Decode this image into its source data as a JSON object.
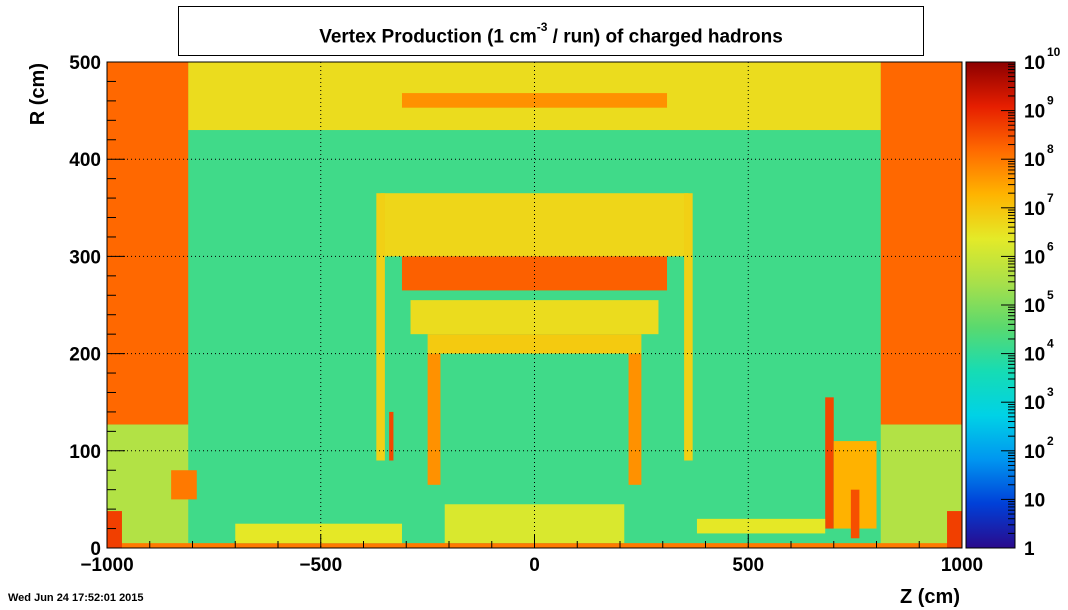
{
  "title": {
    "prefix": "Vertex Production (1 cm",
    "superscript": "-3",
    "suffix": " / run) of   charged hadrons"
  },
  "timestamp": "Wed Jun 24 17:52:01 2015",
  "chart_data": {
    "type": "heatmap",
    "xlabel": "Z (cm)",
    "ylabel": "R (cm)",
    "xlim": [
      -1000,
      1000
    ],
    "ylim": [
      0,
      500
    ],
    "x_ticks": [
      -1000,
      -500,
      0,
      500,
      1000
    ],
    "x_tick_labels": [
      "−1000",
      "−500",
      "0",
      "500",
      "1000"
    ],
    "y_ticks": [
      0,
      100,
      200,
      300,
      400,
      500
    ],
    "y_tick_labels": [
      "0",
      "100",
      "200",
      "300",
      "400",
      "500"
    ],
    "grid": true,
    "z_scale": "log",
    "z_range": [
      1,
      10000000000
    ],
    "colorbar_ticks": [
      {
        "value": 1,
        "base": "1",
        "exp": ""
      },
      {
        "value": 10,
        "base": "10",
        "exp": ""
      },
      {
        "value": 100,
        "base": "10",
        "exp": "2"
      },
      {
        "value": 1000,
        "base": "10",
        "exp": "3"
      },
      {
        "value": 10000,
        "base": "10",
        "exp": "4"
      },
      {
        "value": 100000,
        "base": "10",
        "exp": "5"
      },
      {
        "value": 1000000,
        "base": "10",
        "exp": "6"
      },
      {
        "value": 10000000,
        "base": "10",
        "exp": "7"
      },
      {
        "value": 100000000,
        "base": "10",
        "exp": "8"
      },
      {
        "value": 1000000000,
        "base": "10",
        "exp": "9"
      },
      {
        "value": 10000000000,
        "base": "10",
        "exp": "10"
      }
    ],
    "colormap": [
      "#2a0a8c",
      "#0040d8",
      "#0096f0",
      "#00d2e6",
      "#16dcb4",
      "#5ad96e",
      "#a8e04a",
      "#e4ea28",
      "#ffb400",
      "#ff6a00",
      "#e61e00",
      "#8c0000"
    ],
    "regions": [
      {
        "z": [
          -1000,
          1000
        ],
        "r": [
          0,
          500
        ],
        "log10": 4.2
      },
      {
        "z": [
          -1000,
          -810
        ],
        "r": [
          430,
          500
        ],
        "log10": 6.3
      },
      {
        "z": [
          810,
          1000
        ],
        "r": [
          430,
          500
        ],
        "log10": 6.3
      },
      {
        "z": [
          -810,
          810
        ],
        "r": [
          430,
          500
        ],
        "log10": 6.6
      },
      {
        "z": [
          -310,
          310
        ],
        "r": [
          453,
          468
        ],
        "log10": 7.7
      },
      {
        "z": [
          -1000,
          -810
        ],
        "r": [
          127,
          500
        ],
        "log10": 8.2
      },
      {
        "z": [
          810,
          1000
        ],
        "r": [
          127,
          500
        ],
        "log10": 8.2
      },
      {
        "z": [
          -1000,
          -810
        ],
        "r": [
          0,
          127
        ],
        "log10": 5.6
      },
      {
        "z": [
          810,
          1000
        ],
        "r": [
          0,
          127
        ],
        "log10": 5.6
      },
      {
        "z": [
          -360,
          360
        ],
        "r": [
          300,
          365
        ],
        "log10": 6.7
      },
      {
        "z": [
          -310,
          310
        ],
        "r": [
          265,
          300
        ],
        "log10": 8.3
      },
      {
        "z": [
          -370,
          -350
        ],
        "r": [
          90,
          365
        ],
        "log10": 6.8
      },
      {
        "z": [
          350,
          370
        ],
        "r": [
          90,
          365
        ],
        "log10": 6.8
      },
      {
        "z": [
          -290,
          290
        ],
        "r": [
          220,
          255
        ],
        "log10": 6.6
      },
      {
        "z": [
          -250,
          250
        ],
        "r": [
          200,
          220
        ],
        "log10": 6.9
      },
      {
        "z": [
          -250,
          -220
        ],
        "r": [
          65,
          200
        ],
        "log10": 7.7
      },
      {
        "z": [
          220,
          250
        ],
        "r": [
          65,
          200
        ],
        "log10": 7.7
      },
      {
        "z": [
          -340,
          -330
        ],
        "r": [
          90,
          140
        ],
        "log10": 8.6
      },
      {
        "z": [
          -210,
          210
        ],
        "r": [
          5,
          45
        ],
        "log10": 6.2
      },
      {
        "z": [
          -1000,
          1000
        ],
        "r": [
          0,
          5
        ],
        "log10": 8.0
      },
      {
        "z": [
          -850,
          -790
        ],
        "r": [
          50,
          80
        ],
        "log10": 8.0
      },
      {
        "z": [
          680,
          700
        ],
        "r": [
          20,
          155
        ],
        "log10": 8.6
      },
      {
        "z": [
          700,
          800
        ],
        "r": [
          20,
          110
        ],
        "log10": 7.3
      },
      {
        "z": [
          740,
          760
        ],
        "r": [
          10,
          60
        ],
        "log10": 8.5
      },
      {
        "z": [
          -1000,
          -965
        ],
        "r": [
          0,
          38
        ],
        "log10": 8.7
      },
      {
        "z": [
          965,
          1000
        ],
        "r": [
          0,
          38
        ],
        "log10": 8.7
      },
      {
        "z": [
          -700,
          -310
        ],
        "r": [
          5,
          25
        ],
        "log10": 6.4
      },
      {
        "z": [
          380,
          680
        ],
        "r": [
          15,
          30
        ],
        "log10": 6.4
      }
    ]
  }
}
